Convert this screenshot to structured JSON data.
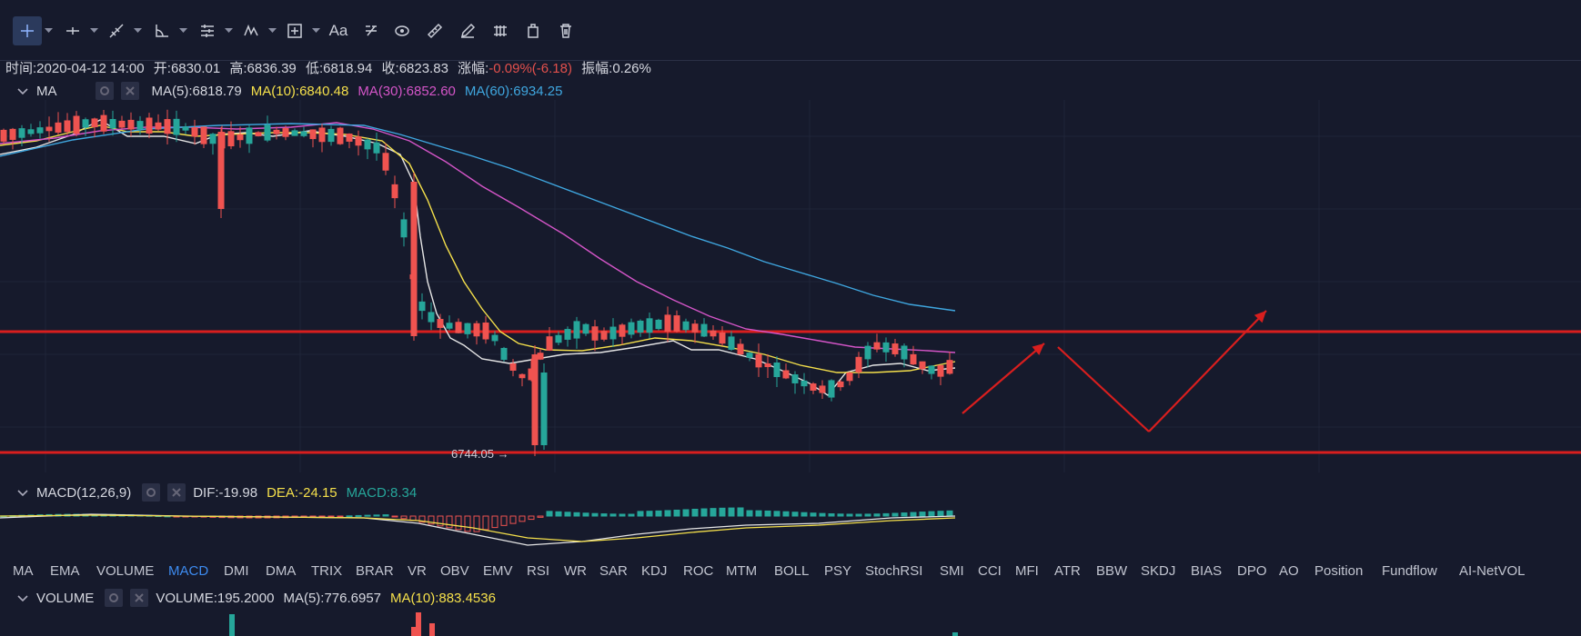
{
  "toolbar": {
    "tools": [
      {
        "icon": "crosshair-icon",
        "caret": true
      },
      {
        "icon": "horizontal-line-icon",
        "caret": true
      },
      {
        "icon": "trendline-icon",
        "caret": true
      },
      {
        "icon": "angle-tool-icon",
        "caret": true
      },
      {
        "icon": "fibonacci-icon",
        "caret": true
      },
      {
        "icon": "wave-pattern-icon",
        "caret": true
      },
      {
        "icon": "measure-icon",
        "caret": true
      },
      {
        "icon": "text-tool-icon",
        "text": "Aa",
        "caret": false
      },
      {
        "icon": "magnet-icon",
        "caret": false
      },
      {
        "icon": "eye-icon",
        "caret": false
      },
      {
        "icon": "ruler-icon",
        "caret": false
      },
      {
        "icon": "pencil-icon",
        "caret": false
      },
      {
        "icon": "lock-icon",
        "caret": false
      },
      {
        "icon": "clipboard-icon",
        "caret": false
      },
      {
        "icon": "trash-icon",
        "caret": false
      }
    ]
  },
  "info": {
    "time_label": "时间:",
    "time": "2020-04-12 14:00",
    "open_label": "开:",
    "open": "6830.01",
    "high_label": "高:",
    "high": "6836.39",
    "low_label": "低:",
    "low": "6818.94",
    "close_label": "收:",
    "close": "6823.83",
    "change_label": "涨幅:",
    "change": "-0.09%(-6.18)",
    "amp_label": "振幅:",
    "amp": "0.26%"
  },
  "ma": {
    "name": "MA",
    "ma5_label": "MA(5):",
    "ma5": "6818.79",
    "ma10_label": "MA(10):",
    "ma10": "6840.48",
    "ma30_label": "MA(30):",
    "ma30": "6852.60",
    "ma60_label": "MA(60):",
    "ma60": "6934.25"
  },
  "low_marker": "6744.05 →",
  "macd": {
    "name": "MACD(12,26,9)",
    "dif_label": "DIF:",
    "dif": "-19.98",
    "dea_label": "DEA:",
    "dea": "-24.15",
    "macd_label": "MACD:",
    "macd": "8.34"
  },
  "tabs": [
    "MA",
    "EMA",
    "VOLUME",
    "MACD",
    "DMI",
    "DMA",
    "TRIX",
    "BRAR",
    "VR",
    "OBV",
    "EMV",
    "RSI",
    "WR",
    "SAR",
    "KDJ",
    "ROC",
    "MTM",
    "BOLL",
    "PSY",
    "StochRSI",
    "SMI",
    "CCI",
    "MFI",
    "ATR",
    "BBW",
    "SKDJ",
    "BIAS",
    "DPO",
    "AO",
    "Position",
    "Fundflow",
    "AI-NetVOL"
  ],
  "active_tab": "MACD",
  "volume": {
    "name": "VOLUME",
    "vol_label": "VOLUME:",
    "vol": "195.2000",
    "ma5_label": "MA(5):",
    "ma5": "776.6957",
    "ma10_label": "MA(10):",
    "ma10": "883.4536"
  },
  "colors": {
    "bg": "#161a2c",
    "up": "#26a69a",
    "down": "#ef5350",
    "ma5": "#e6e6e6",
    "ma10": "#f5e04b",
    "ma30": "#d455c8",
    "ma60": "#3fa7e0",
    "hline": "#d81e1e",
    "accent": "#3d8bf0"
  }
}
